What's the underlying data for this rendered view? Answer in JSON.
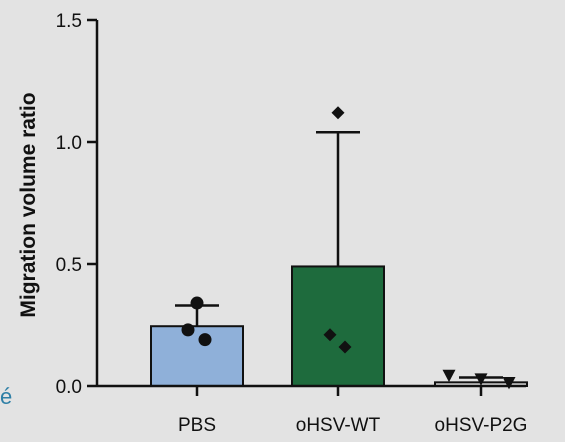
{
  "fragment_text": "é",
  "colors": {
    "background": "#e3e3e3",
    "axis": "#111111",
    "fragment": "#2e7fa6"
  },
  "chart_data": {
    "type": "bar",
    "title": "",
    "xlabel": "",
    "ylabel": "Migration volume ratio",
    "ylim": [
      0,
      1.5
    ],
    "yticks": [
      0.0,
      0.5,
      1.0,
      1.5
    ],
    "ytick_labels": [
      "0.0",
      "0.5",
      "1.0",
      "1.5"
    ],
    "grid": false,
    "legend": "none",
    "categories": [
      "PBS",
      "oHSV-WT",
      "oHSV-P2G"
    ],
    "values": [
      0.245,
      0.49,
      0.015
    ],
    "error_upper": [
      0.33,
      1.04,
      0.035
    ],
    "bar_colors": [
      "#8fb0d9",
      "#1e6b3d",
      "#e3e3e3"
    ],
    "points": [
      {
        "category": 0,
        "marker": "circle",
        "values": [
          0.34,
          0.23,
          0.19
        ]
      },
      {
        "category": 1,
        "marker": "diamond",
        "values": [
          1.12,
          0.21,
          0.16
        ]
      },
      {
        "category": 2,
        "marker": "triangle-down",
        "values": [
          0.04,
          0.025,
          0.01
        ]
      }
    ]
  }
}
